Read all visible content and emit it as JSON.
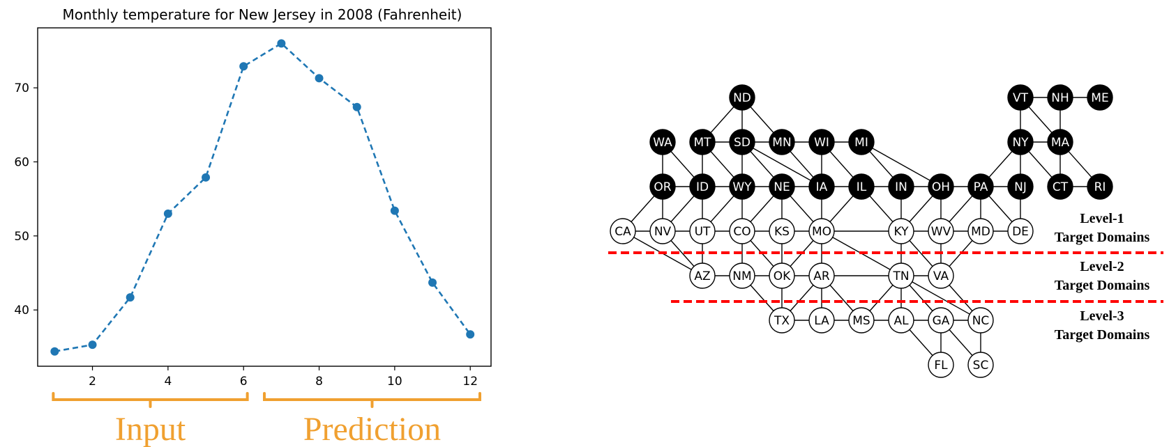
{
  "colors": {
    "series": "#1F77B4",
    "bracket": "#F0A030",
    "divider": "#FF0000",
    "target_node_fill": "#000000",
    "target_node_text": "#FFFFFF",
    "other_node_fill": "#FFFFFF",
    "other_node_text": "#000000"
  },
  "chart_data": {
    "type": "line",
    "title": "Monthly temperature for New Jersey in 2008 (Fahrenheit)",
    "xlabel": "",
    "ylabel": "",
    "x": [
      1,
      2,
      3,
      4,
      5,
      6,
      7,
      8,
      9,
      10,
      11,
      12
    ],
    "series": [
      {
        "values": [
          34.4,
          35.3,
          41.7,
          53.0,
          57.9,
          72.9,
          76.0,
          71.3,
          67.4,
          53.4,
          43.7,
          36.7
        ]
      }
    ],
    "xlim": [
      0.55,
      12.55
    ],
    "ylim": [
      32.4,
      78.1
    ],
    "xticks": [
      2,
      4,
      6,
      8,
      10,
      12
    ],
    "yticks": [
      40,
      50,
      60,
      70
    ],
    "line_style": "dashed",
    "marker": "circle",
    "grid": false
  },
  "brackets": [
    {
      "label": "Input",
      "from": 1,
      "to": 6
    },
    {
      "label": "Prediction",
      "from": 7,
      "to": 12
    }
  ],
  "graph": {
    "level_labels": [
      {
        "line1": "Level-1",
        "line2": "Target Domains"
      },
      {
        "line1": "Level-2",
        "line2": "Target Domains"
      },
      {
        "line1": "Level-3",
        "line2": "Target Domains"
      }
    ],
    "source_nodes": [
      "ND",
      "WA",
      "MT",
      "SD",
      "MN",
      "WI",
      "MI",
      "OR",
      "ID",
      "WY",
      "NE",
      "IA",
      "IL",
      "IN",
      "OH",
      "PA",
      "NJ",
      "VT",
      "NH",
      "ME",
      "NY",
      "MA",
      "CT",
      "RI"
    ],
    "level1_nodes": [
      "CA",
      "NV",
      "UT",
      "CO",
      "KS",
      "MO",
      "KY",
      "WV",
      "MD",
      "DE"
    ],
    "level2_nodes": [
      "AZ",
      "NM",
      "OK",
      "AR",
      "TN",
      "VA"
    ],
    "level3_nodes": [
      "TX",
      "LA",
      "MS",
      "AL",
      "GA",
      "NC",
      "FL",
      "SC"
    ],
    "edges": [
      [
        "ND",
        "MT"
      ],
      [
        "ND",
        "SD"
      ],
      [
        "ND",
        "MN"
      ],
      [
        "WA",
        "OR"
      ],
      [
        "WA",
        "ID"
      ],
      [
        "MT",
        "ID"
      ],
      [
        "MT",
        "WY"
      ],
      [
        "MT",
        "SD"
      ],
      [
        "SD",
        "WY"
      ],
      [
        "SD",
        "NE"
      ],
      [
        "SD",
        "IA"
      ],
      [
        "SD",
        "MN"
      ],
      [
        "MN",
        "IA"
      ],
      [
        "MN",
        "WI"
      ],
      [
        "WI",
        "IA"
      ],
      [
        "WI",
        "IL"
      ],
      [
        "WI",
        "MI"
      ],
      [
        "MI",
        "IN"
      ],
      [
        "MI",
        "OH"
      ],
      [
        "OR",
        "ID"
      ],
      [
        "OR",
        "NV"
      ],
      [
        "OR",
        "CA"
      ],
      [
        "ID",
        "WY"
      ],
      [
        "ID",
        "UT"
      ],
      [
        "ID",
        "NV"
      ],
      [
        "WY",
        "NE"
      ],
      [
        "WY",
        "UT"
      ],
      [
        "WY",
        "CO"
      ],
      [
        "NE",
        "IA"
      ],
      [
        "NE",
        "CO"
      ],
      [
        "NE",
        "KS"
      ],
      [
        "NE",
        "MO"
      ],
      [
        "IA",
        "IL"
      ],
      [
        "IA",
        "MO"
      ],
      [
        "IL",
        "IN"
      ],
      [
        "IL",
        "MO"
      ],
      [
        "IL",
        "KY"
      ],
      [
        "IN",
        "OH"
      ],
      [
        "IN",
        "KY"
      ],
      [
        "OH",
        "PA"
      ],
      [
        "OH",
        "KY"
      ],
      [
        "OH",
        "WV"
      ],
      [
        "PA",
        "NY"
      ],
      [
        "PA",
        "NJ"
      ],
      [
        "PA",
        "WV"
      ],
      [
        "PA",
        "MD"
      ],
      [
        "PA",
        "DE"
      ],
      [
        "NJ",
        "NY"
      ],
      [
        "NJ",
        "DE"
      ],
      [
        "VT",
        "NH"
      ],
      [
        "VT",
        "NY"
      ],
      [
        "VT",
        "MA"
      ],
      [
        "NH",
        "ME"
      ],
      [
        "NH",
        "MA"
      ],
      [
        "NY",
        "MA"
      ],
      [
        "NY",
        "CT"
      ],
      [
        "MA",
        "CT"
      ],
      [
        "MA",
        "RI"
      ],
      [
        "CT",
        "RI"
      ],
      [
        "CA",
        "NV"
      ],
      [
        "CA",
        "AZ"
      ],
      [
        "NV",
        "UT"
      ],
      [
        "NV",
        "AZ"
      ],
      [
        "UT",
        "CO"
      ],
      [
        "UT",
        "AZ"
      ],
      [
        "CO",
        "KS"
      ],
      [
        "CO",
        "NM"
      ],
      [
        "CO",
        "OK"
      ],
      [
        "KS",
        "MO"
      ],
      [
        "KS",
        "OK"
      ],
      [
        "MO",
        "KY"
      ],
      [
        "MO",
        "OK"
      ],
      [
        "MO",
        "AR"
      ],
      [
        "MO",
        "TN"
      ],
      [
        "KY",
        "WV"
      ],
      [
        "KY",
        "TN"
      ],
      [
        "KY",
        "VA"
      ],
      [
        "WV",
        "MD"
      ],
      [
        "WV",
        "VA"
      ],
      [
        "MD",
        "DE"
      ],
      [
        "MD",
        "VA"
      ],
      [
        "AZ",
        "NM"
      ],
      [
        "NM",
        "OK"
      ],
      [
        "NM",
        "TX"
      ],
      [
        "OK",
        "AR"
      ],
      [
        "OK",
        "TX"
      ],
      [
        "AR",
        "TN"
      ],
      [
        "AR",
        "TX"
      ],
      [
        "AR",
        "LA"
      ],
      [
        "AR",
        "MS"
      ],
      [
        "TN",
        "VA"
      ],
      [
        "TN",
        "MS"
      ],
      [
        "TN",
        "AL"
      ],
      [
        "TN",
        "GA"
      ],
      [
        "TN",
        "NC"
      ],
      [
        "VA",
        "NC"
      ],
      [
        "TX",
        "LA"
      ],
      [
        "LA",
        "MS"
      ],
      [
        "MS",
        "AL"
      ],
      [
        "AL",
        "GA"
      ],
      [
        "AL",
        "FL"
      ],
      [
        "GA",
        "NC"
      ],
      [
        "GA",
        "FL"
      ],
      [
        "GA",
        "SC"
      ],
      [
        "NC",
        "SC"
      ]
    ]
  }
}
